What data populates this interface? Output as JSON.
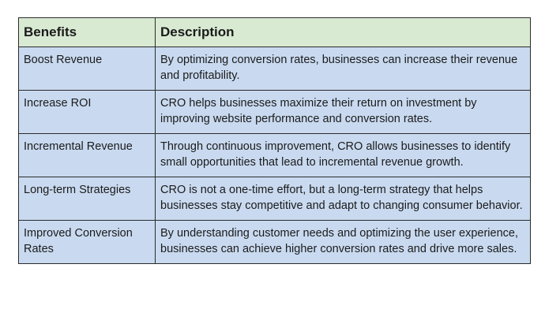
{
  "table": {
    "headers": [
      "Benefits",
      "Description"
    ],
    "rows": [
      {
        "benefit": "Boost Revenue",
        "description": "By optimizing conversion rates, businesses can increase their revenue and profitability."
      },
      {
        "benefit": "Increase ROI",
        "description": "CRO helps businesses maximize their return on investment by improving website performance and conversion rates."
      },
      {
        "benefit": "Incremental Revenue",
        "description": "Through continuous improvement, CRO allows businesses to identify small opportunities that lead to incremental revenue growth."
      },
      {
        "benefit": "Long-term Strategies",
        "description": "CRO is not a one-time effort, but a long-term strategy that helps businesses stay competitive and adapt to changing consumer behavior."
      },
      {
        "benefit": "Improved Conversion Rates",
        "description": "By understanding customer needs and optimizing the user experience, businesses can achieve higher conversion rates and drive more sales."
      }
    ],
    "colors": {
      "header_bg": "#d9ead3",
      "cell_bg": "#c9daf0",
      "border": "#2b2b2b"
    }
  }
}
